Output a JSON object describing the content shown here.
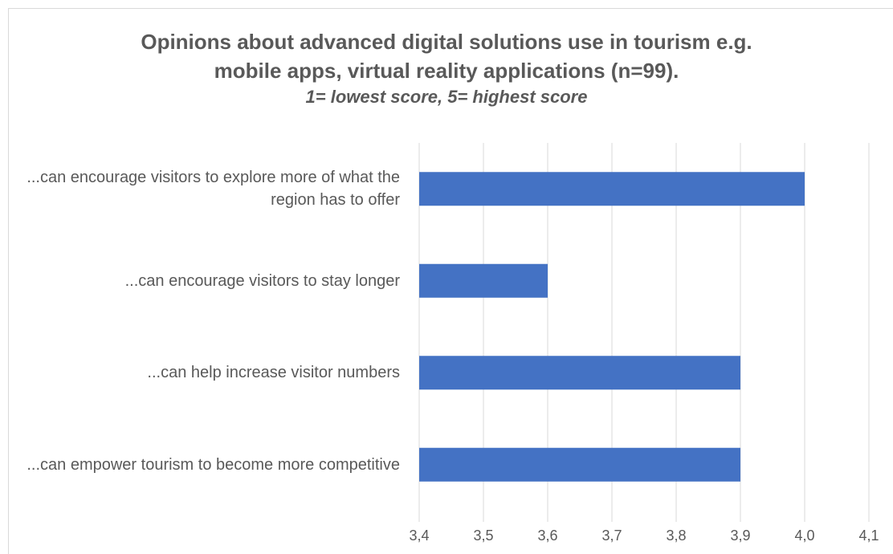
{
  "chart_data": {
    "type": "barh",
    "title": "Opinions about advanced digital solutions use in tourism e.g. mobile apps, virtual reality applications (n=99).",
    "subtitle": "1= lowest score, 5= highest score",
    "categories": [
      "...can encourage visitors to explore more of what the region has to offer",
      "...can encourage visitors to stay longer",
      "...can help increase visitor numbers",
      "...can empower tourism to become more competitive"
    ],
    "values": [
      4.0,
      3.6,
      3.9,
      3.9
    ],
    "color": "#4472c4",
    "xlim": [
      3.4,
      4.1
    ],
    "xticks": [
      {
        "value": 3.4,
        "label": "3,4"
      },
      {
        "value": 3.5,
        "label": "3,5"
      },
      {
        "value": 3.6,
        "label": "3,6"
      },
      {
        "value": 3.7,
        "label": "3,7"
      },
      {
        "value": 3.8,
        "label": "3,8"
      },
      {
        "value": 3.9,
        "label": "3,9"
      },
      {
        "value": 4.0,
        "label": "4,0"
      },
      {
        "value": 4.1,
        "label": "4,1"
      }
    ],
    "grid": true
  }
}
